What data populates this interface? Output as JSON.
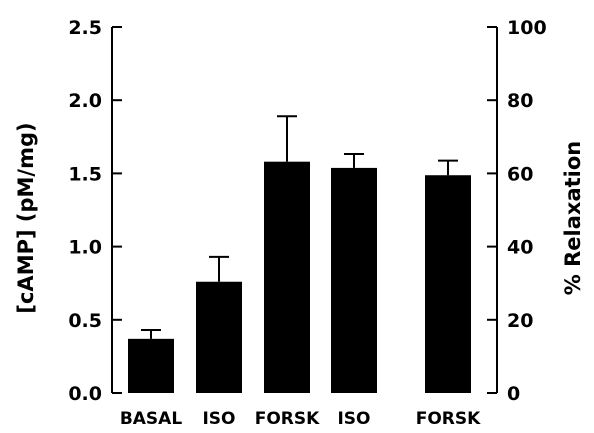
{
  "chart_data": {
    "type": "bar",
    "left_axis": {
      "label": "[cAMP] (pM/mg)",
      "ylim": [
        0,
        2.5
      ],
      "ticks": [
        "0.0",
        "0.5",
        "1.0",
        "1.5",
        "2.0",
        "2.5"
      ]
    },
    "right_axis": {
      "label": "% Relaxation",
      "ylim": [
        0,
        100
      ],
      "ticks": [
        "0",
        "20",
        "40",
        "60",
        "80",
        "100"
      ]
    },
    "groups": [
      {
        "axis": "left",
        "categories": [
          "BASAL",
          "ISO",
          "FORSK"
        ],
        "values": [
          0.37,
          0.76,
          1.58
        ],
        "errors": [
          0.06,
          0.17,
          0.31
        ]
      },
      {
        "axis": "right",
        "categories": [
          "ISO",
          "FORSK"
        ],
        "values": [
          61.5,
          59.5
        ],
        "errors": [
          3.8,
          4.0
        ]
      }
    ],
    "colors": {
      "bar": "#000000",
      "axis": "#000000"
    },
    "grid": false,
    "legend": "none"
  }
}
